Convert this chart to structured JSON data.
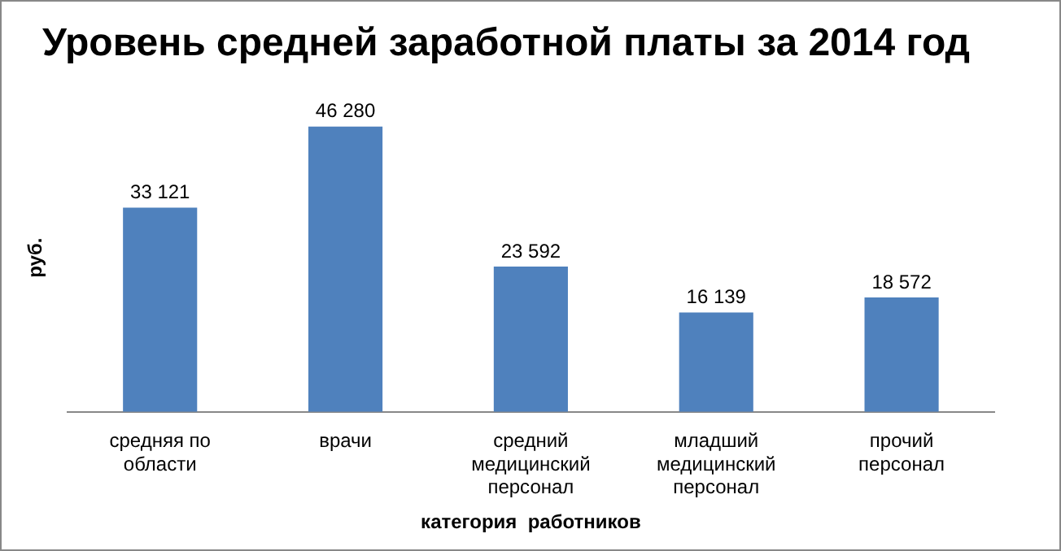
{
  "chart_data": {
    "type": "bar",
    "title": "Уровень средней заработной платы за 2014 год",
    "xlabel": "категория  работников",
    "ylabel": "руб.",
    "categories": [
      "средняя по области",
      "врачи",
      "средний медицинский персонал",
      "младший медицинский персонал",
      "прочий персонал"
    ],
    "values": [
      33121,
      46280,
      23592,
      16139,
      18572
    ],
    "value_labels": [
      "33 121",
      "46 280",
      "23 592",
      "16 139",
      "18 572"
    ],
    "color": "#4f81bd",
    "grid": false,
    "legend": false
  }
}
